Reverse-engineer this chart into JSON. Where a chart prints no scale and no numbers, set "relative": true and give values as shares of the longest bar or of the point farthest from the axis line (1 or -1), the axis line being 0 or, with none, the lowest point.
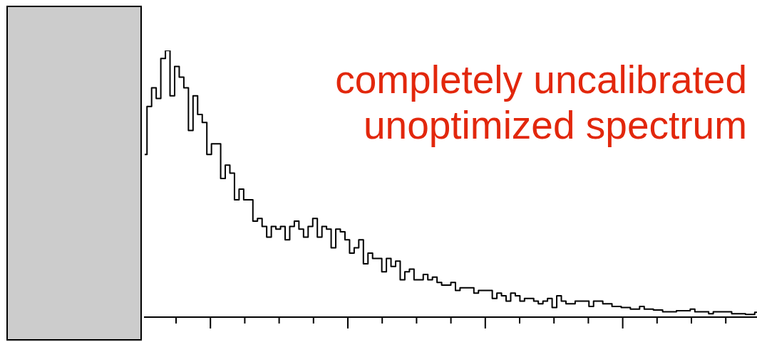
{
  "chart_data": {
    "type": "step",
    "relative": true,
    "color": "#000000",
    "grid": false,
    "legend": false,
    "tick_labels": false,
    "annotations": [
      "completely uncalibrated",
      "unoptimized spectrum"
    ],
    "categories": [
      null,
      null,
      null,
      null,
      null,
      null,
      null,
      null,
      null,
      null,
      null,
      null,
      null,
      null,
      null,
      null,
      null,
      null,
      null,
      null,
      null,
      null,
      null,
      null,
      null,
      null,
      null,
      null,
      null,
      null,
      null,
      null,
      null,
      null,
      null,
      null,
      null,
      null,
      null,
      null,
      null,
      null,
      null,
      null,
      null,
      null,
      null,
      null,
      null,
      null,
      null,
      null,
      null,
      null,
      null,
      null,
      null,
      null,
      null,
      null,
      null,
      null,
      null,
      null,
      null,
      null,
      null,
      null,
      null,
      null,
      null,
      null,
      null,
      null,
      null,
      null,
      null,
      null,
      null,
      null,
      null,
      null,
      null,
      null,
      null,
      null,
      null,
      null,
      null,
      null,
      null,
      null,
      null,
      null,
      null,
      null,
      null,
      null,
      null,
      null,
      null,
      null,
      null,
      null,
      null,
      null,
      null,
      null,
      null,
      null,
      null,
      null,
      null,
      null,
      null,
      null,
      null,
      null,
      null,
      null,
      null,
      null,
      null,
      null,
      null,
      null,
      null,
      null,
      null,
      null,
      null,
      null,
      null,
      null
    ],
    "values": [
      0.61,
      0.79,
      0.86,
      0.82,
      0.97,
      1.0,
      0.83,
      0.94,
      0.9,
      0.86,
      0.7,
      0.83,
      0.76,
      0.73,
      0.61,
      0.65,
      0.65,
      0.52,
      0.57,
      0.54,
      0.44,
      0.48,
      0.44,
      0.44,
      0.36,
      0.37,
      0.34,
      0.3,
      0.34,
      0.33,
      0.34,
      0.29,
      0.34,
      0.36,
      0.33,
      0.3,
      0.34,
      0.37,
      0.3,
      0.34,
      0.33,
      0.26,
      0.33,
      0.32,
      0.29,
      0.24,
      0.26,
      0.29,
      0.2,
      0.24,
      0.22,
      0.22,
      0.17,
      0.22,
      0.19,
      0.21,
      0.14,
      0.17,
      0.18,
      0.14,
      0.14,
      0.16,
      0.14,
      0.15,
      0.13,
      0.12,
      0.12,
      0.13,
      0.1,
      0.11,
      0.11,
      0.11,
      0.09,
      0.1,
      0.1,
      0.1,
      0.07,
      0.09,
      0.08,
      0.06,
      0.09,
      0.08,
      0.06,
      0.07,
      0.07,
      0.06,
      0.05,
      0.06,
      0.07,
      0.036,
      0.08,
      0.06,
      0.05,
      0.05,
      0.06,
      0.06,
      0.06,
      0.04,
      0.06,
      0.06,
      0.05,
      0.05,
      0.04,
      0.04,
      0.036,
      0.036,
      0.03,
      0.03,
      0.04,
      0.03,
      0.03,
      0.027,
      0.027,
      0.02,
      0.02,
      0.02,
      0.024,
      0.024,
      0.024,
      0.03,
      0.02,
      0.02,
      0.02,
      0.013,
      0.02,
      0.02,
      0.02,
      0.02,
      0.013,
      0.013,
      0.013,
      0.01,
      0.01,
      0.018
    ]
  }
}
